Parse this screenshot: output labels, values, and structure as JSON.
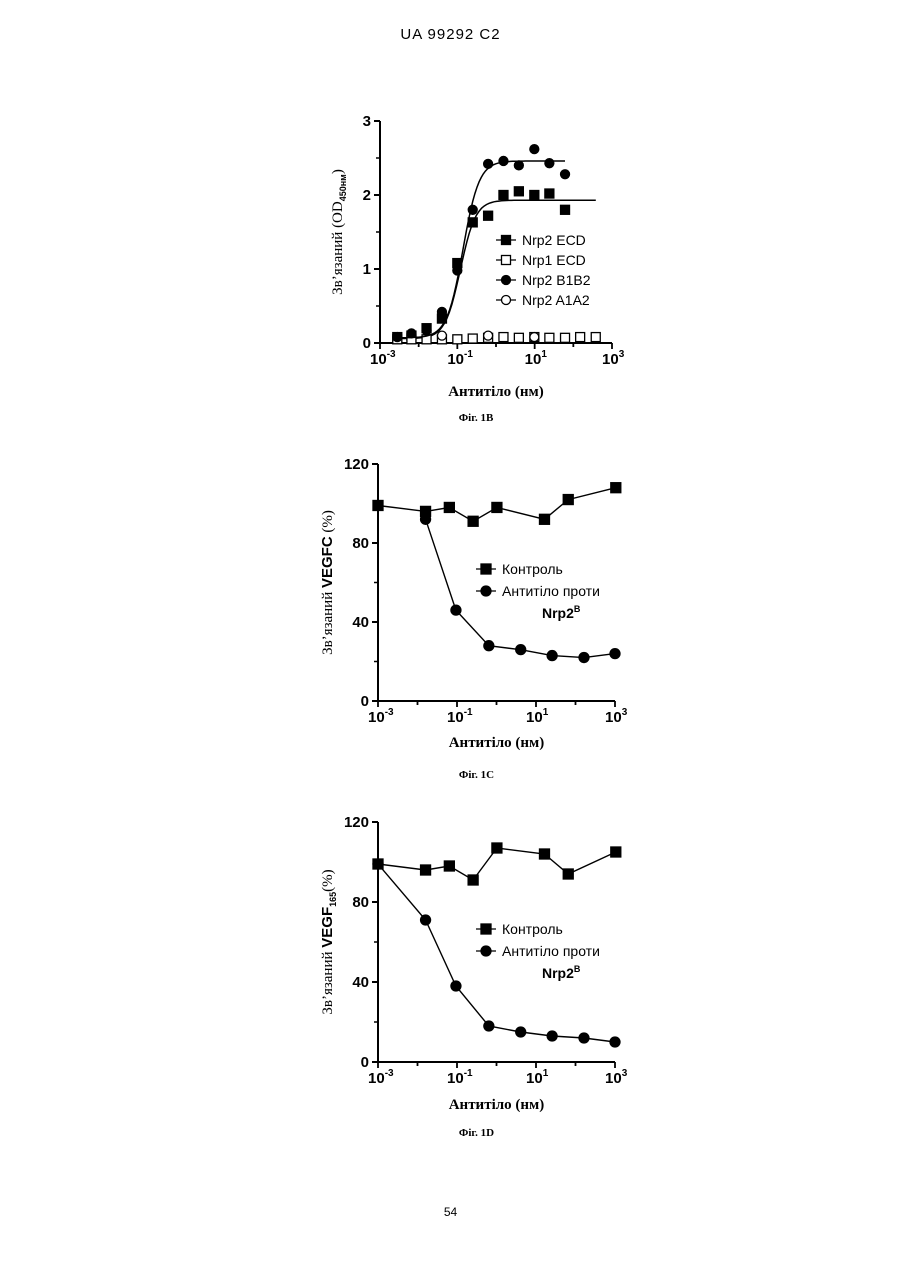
{
  "page": {
    "header": "UA   99292   C2",
    "page_number": "54"
  },
  "chart_data": [
    {
      "type": "scatter",
      "caption": "Фіг. 1В",
      "xlabel": "Антитіло (нм)",
      "ylabel": "Зв’язаний (OD450нм)",
      "ylabel_parts": {
        "main": "Зв’язаний (OD",
        "sub": "450нм",
        "close": ")"
      },
      "x_scale": "log",
      "xlim": [
        0.001,
        1000
      ],
      "ylim": [
        0,
        3
      ],
      "x_ticks": [
        {
          "base": "10",
          "exp": "-3"
        },
        {
          "base": "10",
          "exp": "-1"
        },
        {
          "base": "10",
          "exp": "1"
        },
        {
          "base": "10",
          "exp": "3"
        }
      ],
      "y_ticks": [
        "0",
        "1",
        "2",
        "3"
      ],
      "y_tick_values": [
        0,
        1,
        2,
        3
      ],
      "legend_position": "center-right",
      "series": [
        {
          "name": "Nrp2 ECD",
          "marker": "square-filled",
          "fit": "sigmoid",
          "x": [
            0.0028,
            0.0065,
            0.016,
            0.04,
            0.1,
            0.25,
            0.625,
            1.56,
            3.9,
            9.8,
            24,
            61,
            150,
            380
          ],
          "y": [
            0.08,
            0.1,
            0.2,
            0.33,
            1.08,
            1.63,
            1.72,
            2.0,
            2.05,
            2.0,
            2.02,
            1.8,
            null,
            null
          ],
          "fit_params": {
            "bottom": 0.06,
            "top": 1.93,
            "ec50": 0.12,
            "hill": 2.2
          }
        },
        {
          "name": "Nrp1 ECD",
          "marker": "square-open",
          "x": [
            0.0028,
            0.0065,
            0.016,
            0.04,
            0.1,
            0.25,
            0.625,
            1.56,
            3.9,
            9.8,
            24,
            61,
            150,
            380
          ],
          "y": [
            0.05,
            0.05,
            0.05,
            0.05,
            0.05,
            0.06,
            0.07,
            0.08,
            0.07,
            0.08,
            0.07,
            0.07,
            0.08,
            0.08
          ]
        },
        {
          "name": "Nrp2 B1B2",
          "marker": "circle-filled",
          "fit": "sigmoid",
          "x": [
            0.0028,
            0.0065,
            0.016,
            0.04,
            0.1,
            0.25,
            0.625,
            1.56,
            3.9,
            9.8,
            24,
            61
          ],
          "y": [
            0.08,
            0.13,
            0.17,
            0.42,
            0.98,
            1.8,
            2.42,
            2.46,
            2.4,
            2.62,
            2.43,
            2.28
          ],
          "fit_params": {
            "bottom": 0.07,
            "top": 2.46,
            "ec50": 0.14,
            "hill": 2.1
          }
        },
        {
          "name": "Nrp2 A1A2",
          "marker": "circle-open",
          "x": [
            0.04,
            0.625,
            9.8
          ],
          "y": [
            0.1,
            0.1,
            0.08
          ]
        }
      ]
    },
    {
      "type": "line",
      "caption": "Фіг. 1С",
      "xlabel": "Антитіло (нм)",
      "ylabel": "Зв’язаний VEGFC (%)",
      "ylabel_parts": {
        "main": "Зв’язаний ",
        "mid": "VEGFC",
        "close": " (%)"
      },
      "x_scale": "log",
      "xlim": [
        0.001,
        1000
      ],
      "ylim": [
        0,
        120
      ],
      "x_ticks": [
        {
          "base": "10",
          "exp": "-3"
        },
        {
          "base": "10",
          "exp": "-1"
        },
        {
          "base": "10",
          "exp": "1"
        },
        {
          "base": "10",
          "exp": "3"
        }
      ],
      "y_ticks": [
        "0",
        "40",
        "80",
        "120"
      ],
      "y_tick_values": [
        0,
        40,
        80,
        120
      ],
      "legend_position": "center-right",
      "legend": [
        "Контроль",
        "Антитіло проти",
        "Nrp2",
        "B"
      ],
      "series": [
        {
          "name": "Контроль",
          "marker": "square-filled",
          "x": [
            0.001,
            0.016,
            0.064,
            0.256,
            1.024,
            4.1,
            16.4,
            65.5,
            262,
            1048
          ],
          "y": [
            99,
            96,
            98,
            91,
            98,
            null,
            92,
            102,
            null,
            108
          ]
        },
        {
          "name": "Антитіло проти Nrp2B",
          "marker": "circle-filled",
          "x": [
            0.016,
            0.094,
            0.64,
            4.1,
            25.6,
            164,
            1000
          ],
          "y": [
            92,
            46,
            28,
            26,
            23,
            22,
            24
          ]
        }
      ]
    },
    {
      "type": "line",
      "caption": "Фіг. 1D",
      "xlabel": "Антитіло (нм)",
      "ylabel": "Зв’язаний VEGF165 (%)",
      "ylabel_parts": {
        "main": "Зв’язаний ",
        "mid": "VEGF",
        "sub": "165",
        "close": "(%)"
      },
      "x_scale": "log",
      "xlim": [
        0.001,
        1000
      ],
      "ylim": [
        0,
        120
      ],
      "x_ticks": [
        {
          "base": "10",
          "exp": "-3"
        },
        {
          "base": "10",
          "exp": "-1"
        },
        {
          "base": "10",
          "exp": "1"
        },
        {
          "base": "10",
          "exp": "3"
        }
      ],
      "y_ticks": [
        "0",
        "40",
        "80",
        "120"
      ],
      "y_tick_values": [
        0,
        40,
        80,
        120
      ],
      "legend_position": "center-right",
      "legend": [
        "Контроль",
        "Антитіло проти",
        "Nrp2",
        "B"
      ],
      "series": [
        {
          "name": "Контроль",
          "marker": "square-filled",
          "x": [
            0.001,
            0.016,
            0.064,
            0.256,
            1.024,
            4.1,
            16.4,
            65.5,
            262,
            1048
          ],
          "y": [
            99,
            96,
            98,
            91,
            107,
            null,
            104,
            94,
            null,
            105
          ]
        },
        {
          "name": "Антитіло проти Nrp2B",
          "marker": "circle-filled",
          "x": [
            0.001,
            0.016,
            0.094,
            0.64,
            4.1,
            25.6,
            164,
            1000
          ],
          "y": [
            99,
            71,
            38,
            18,
            15,
            13,
            12,
            10
          ]
        }
      ]
    }
  ]
}
